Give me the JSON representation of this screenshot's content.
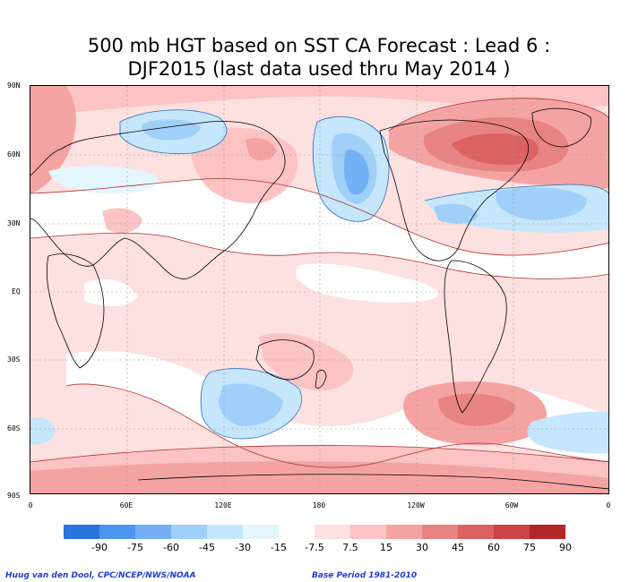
{
  "title_line1": "500 mb HGT based on SST CA Forecast : Lead 6 :",
  "title_line2": "DJF2015 (last data used thru May 2014 )",
  "lat_labels": [
    "90N",
    "60N",
    "30N",
    "EQ",
    "30S",
    "60S",
    "90S"
  ],
  "lon_labels": [
    "0",
    "60E",
    "120E",
    "180",
    "120W",
    "60W",
    "0"
  ],
  "legend": {
    "labels": [
      "-90",
      "-75",
      "-60",
      "-45",
      "-30",
      "-15",
      "-7.5",
      "7.5",
      "15",
      "30",
      "45",
      "60",
      "75",
      "90"
    ],
    "colors": [
      "#2a74e0",
      "#4c95ee",
      "#74b0f5",
      "#a0cff8",
      "#c5e6fb",
      "#e3f6fd",
      "#ffffff",
      "#fde0e0",
      "#fbc3c3",
      "#f4a3a3",
      "#e88383",
      "#dc6262",
      "#cc4343",
      "#b52626"
    ]
  },
  "footer": {
    "credit": "Huug van den Dool, CPC/NCEP/NWS/NOAA",
    "base_period": "Base Period 1981-2010"
  }
}
